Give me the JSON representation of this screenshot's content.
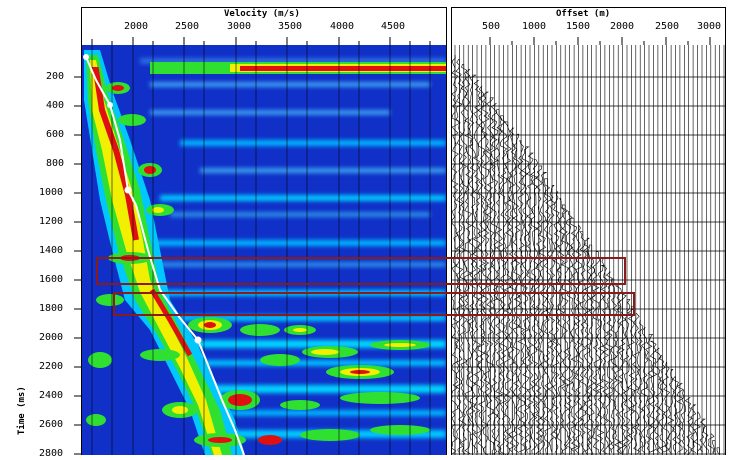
{
  "velocity_panel": {
    "title": "Velocity (m/s)",
    "ticks": [
      "2000",
      "2500",
      "3000",
      "3500",
      "4000",
      "4500"
    ]
  },
  "offset_panel": {
    "title": "Offset (m)",
    "ticks": [
      "500",
      "1000",
      "1500",
      "2000",
      "2500",
      "3000"
    ]
  },
  "time_axis": {
    "label": "Time (ms)",
    "ticks": [
      "200",
      "400",
      "600",
      "800",
      "1000",
      "1200",
      "1400",
      "1600",
      "1800",
      "2000",
      "2200",
      "2400",
      "2600",
      "2800"
    ]
  },
  "colors": {
    "semblance_bg": "#1030c8",
    "cyan": "#00c8ff",
    "green": "#30e030",
    "yellow": "#f0f000",
    "red": "#e01010",
    "pick_line": "#ffffff",
    "highlight_box": "#8b1a1a"
  }
}
